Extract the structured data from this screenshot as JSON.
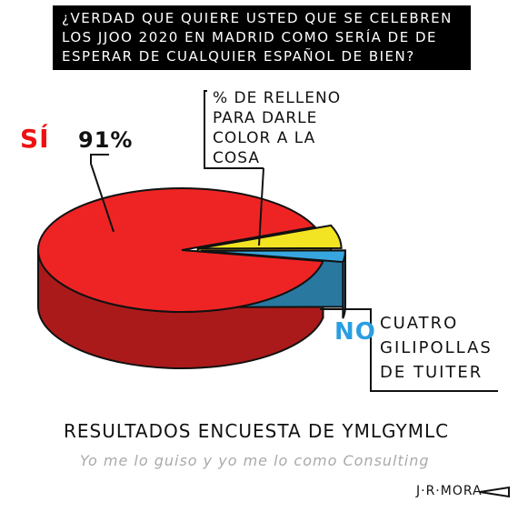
{
  "chart_data": {
    "type": "pie",
    "title": "¿VERDAD QUE QUIERE USTED QUE SE CELEBREN LOS JJOO 2020 EN MADRID COMO SERÍA DE DE ESPERAR DE CUALQUIER ESPAÑOL DE BIEN?",
    "categories": [
      "SÍ",
      "% DE RELLENO PARA DARLE COLOR A LA COSA",
      "NO"
    ],
    "values": [
      91,
      6,
      3
    ],
    "value_labels": [
      "91%",
      null,
      null
    ],
    "colors": [
      "#ee2424",
      "#f2e423",
      "#38a6de"
    ],
    "annotations": [
      "CUATRO GILIPOLLAS DE TUITER"
    ],
    "subtitle": "RESULTADOS ENCUESTA DE YMLGYMLC",
    "source": "Yo me lo guiso y yo me lo como Consulting",
    "signature": "J·R·MORA"
  }
}
